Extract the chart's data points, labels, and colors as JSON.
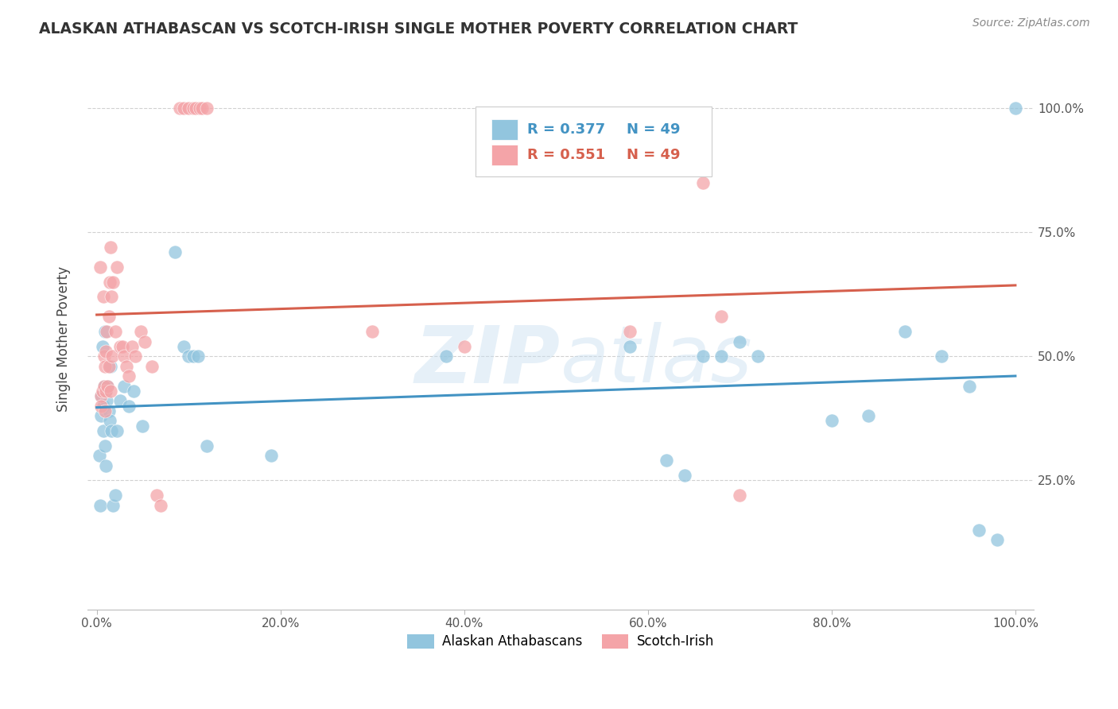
{
  "title": "ALASKAN ATHABASCAN VS SCOTCH-IRISH SINGLE MOTHER POVERTY CORRELATION CHART",
  "source": "Source: ZipAtlas.com",
  "ylabel": "Single Mother Poverty",
  "blue_R": "R = 0.377",
  "blue_N": "N = 49",
  "pink_R": "R = 0.551",
  "pink_N": "N = 49",
  "legend_labels": [
    "Alaskan Athabascans",
    "Scotch-Irish"
  ],
  "blue_color": "#92c5de",
  "pink_color": "#f4a4a8",
  "blue_line_color": "#4393c3",
  "pink_line_color": "#d6604d",
  "watermark_color": "#c8dff0",
  "background_color": "#ffffff",
  "grid_color": "#d0d0d0",
  "blue_points_x": [
    0.003,
    0.004,
    0.005,
    0.005,
    0.006,
    0.007,
    0.007,
    0.008,
    0.009,
    0.009,
    0.01,
    0.01,
    0.011,
    0.012,
    0.013,
    0.014,
    0.015,
    0.016,
    0.018,
    0.02,
    0.022,
    0.025,
    0.03,
    0.035,
    0.04,
    0.05,
    0.085,
    0.095,
    0.1,
    0.105,
    0.11,
    0.12,
    0.19,
    0.38,
    0.58,
    0.62,
    0.64,
    0.66,
    0.68,
    0.7,
    0.72,
    0.8,
    0.84,
    0.88,
    0.92,
    0.95,
    0.96,
    0.98,
    1.0
  ],
  "blue_points_y": [
    0.3,
    0.2,
    0.42,
    0.38,
    0.52,
    0.4,
    0.35,
    0.44,
    0.55,
    0.32,
    0.43,
    0.28,
    0.41,
    0.44,
    0.39,
    0.37,
    0.48,
    0.35,
    0.2,
    0.22,
    0.35,
    0.41,
    0.44,
    0.4,
    0.43,
    0.36,
    0.71,
    0.52,
    0.5,
    0.5,
    0.5,
    0.32,
    0.3,
    0.5,
    0.52,
    0.29,
    0.26,
    0.5,
    0.5,
    0.53,
    0.5,
    0.37,
    0.38,
    0.55,
    0.5,
    0.44,
    0.15,
    0.13,
    1.0
  ],
  "pink_points_x": [
    0.004,
    0.005,
    0.005,
    0.006,
    0.007,
    0.008,
    0.008,
    0.009,
    0.009,
    0.01,
    0.01,
    0.011,
    0.012,
    0.013,
    0.013,
    0.014,
    0.015,
    0.015,
    0.016,
    0.017,
    0.018,
    0.02,
    0.022,
    0.025,
    0.028,
    0.03,
    0.032,
    0.035,
    0.038,
    0.042,
    0.048,
    0.052,
    0.06,
    0.065,
    0.07,
    0.09,
    0.095,
    0.1,
    0.105,
    0.108,
    0.112,
    0.115,
    0.12,
    0.3,
    0.4,
    0.58,
    0.66,
    0.68,
    0.7
  ],
  "pink_points_y": [
    0.68,
    0.42,
    0.4,
    0.43,
    0.62,
    0.5,
    0.44,
    0.48,
    0.39,
    0.51,
    0.43,
    0.55,
    0.44,
    0.58,
    0.48,
    0.65,
    0.72,
    0.43,
    0.62,
    0.5,
    0.65,
    0.55,
    0.68,
    0.52,
    0.52,
    0.5,
    0.48,
    0.46,
    0.52,
    0.5,
    0.55,
    0.53,
    0.48,
    0.22,
    0.2,
    1.0,
    1.0,
    1.0,
    1.0,
    1.0,
    1.0,
    1.0,
    1.0,
    0.55,
    0.52,
    0.55,
    0.85,
    0.58,
    0.22
  ],
  "xlim": [
    0.0,
    1.0
  ],
  "ylim": [
    0.0,
    1.0
  ],
  "x_ticks": [
    0.0,
    0.2,
    0.4,
    0.6,
    0.8,
    1.0
  ],
  "x_tick_labels": [
    "0.0%",
    "20.0%",
    "40.0%",
    "60.0%",
    "80.0%",
    "100.0%"
  ],
  "y_ticks": [
    0.25,
    0.5,
    0.75,
    1.0
  ],
  "y_tick_labels": [
    "25.0%",
    "50.0%",
    "75.0%",
    "100.0%"
  ]
}
